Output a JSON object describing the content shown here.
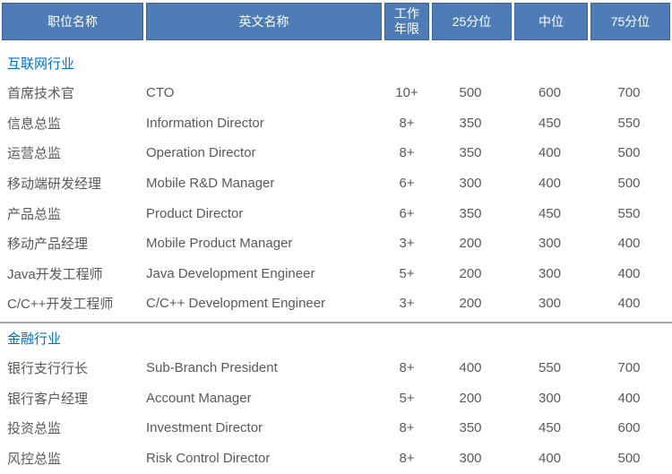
{
  "colors": {
    "header_bg": "#4e7cb7",
    "header_border": "#3a6292",
    "header_text": "#ffffff",
    "section_title": "#0070c0",
    "row_text": "#595959",
    "divider": "#a6a6a6"
  },
  "table": {
    "columns": [
      {
        "key": "cn",
        "label": "职位名称"
      },
      {
        "key": "en",
        "label": "英文名称"
      },
      {
        "key": "years",
        "label": "工作\n年限"
      },
      {
        "key": "p25",
        "label": "25分位"
      },
      {
        "key": "median",
        "label": "中位"
      },
      {
        "key": "p75",
        "label": "75分位"
      }
    ],
    "sections": [
      {
        "title": "互联网行业",
        "rows": [
          {
            "cn": "首席技术官",
            "en": "CTO",
            "years": "10+",
            "p25": "500",
            "median": "600",
            "p75": "700"
          },
          {
            "cn": "信息总监",
            "en": "Information Director",
            "years": "8+",
            "p25": "350",
            "median": "450",
            "p75": "550"
          },
          {
            "cn": "运营总监",
            "en": "Operation Director",
            "years": "8+",
            "p25": "350",
            "median": "400",
            "p75": "500"
          },
          {
            "cn": "移动端研发经理",
            "en": "Mobile R&D Manager",
            "years": "6+",
            "p25": "300",
            "median": "400",
            "p75": "500"
          },
          {
            "cn": "产品总监",
            "en": "Product Director",
            "years": "6+",
            "p25": "350",
            "median": "450",
            "p75": "550"
          },
          {
            "cn": "移动产品经理",
            "en": "Mobile Product Manager",
            "years": "3+",
            "p25": "200",
            "median": "300",
            "p75": "400"
          },
          {
            "cn": "Java开发工程师",
            "en": "Java Development Engineer",
            "years": "5+",
            "p25": "200",
            "median": "300",
            "p75": "400"
          },
          {
            "cn": "C/C++开发工程师",
            "en": "C/C++ Development Engineer",
            "years": "3+",
            "p25": "200",
            "median": "300",
            "p75": "400"
          }
        ]
      },
      {
        "title": "金融行业",
        "rows": [
          {
            "cn": "银行支行行长",
            "en": "Sub-Branch President",
            "years": "8+",
            "p25": "400",
            "median": "550",
            "p75": "700"
          },
          {
            "cn": "银行客户经理",
            "en": "Account Manager",
            "years": "5+",
            "p25": "200",
            "median": "300",
            "p75": "400"
          },
          {
            "cn": "投资总监",
            "en": "Investment Director",
            "years": "8+",
            "p25": "350",
            "median": "450",
            "p75": "600"
          },
          {
            "cn": "风控总监",
            "en": "Risk Control Director",
            "years": "8+",
            "p25": "300",
            "median": "400",
            "p75": "500"
          }
        ]
      }
    ]
  }
}
